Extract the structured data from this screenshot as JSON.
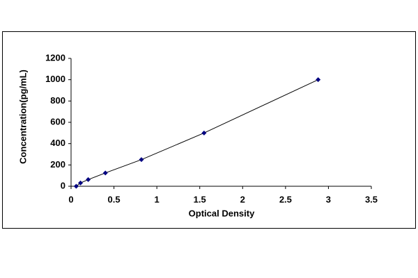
{
  "chart_data": {
    "type": "scatter-line",
    "xlabel": "Optical Density",
    "ylabel": "Concentration(pg/mL)",
    "x": [
      0.06,
      0.11,
      0.2,
      0.4,
      0.82,
      1.55,
      2.88
    ],
    "y": [
      0,
      31.25,
      62.5,
      125,
      250,
      500,
      1000
    ],
    "marker_color": "#000080",
    "line_color": "#000000",
    "xlim": [
      0,
      3.5
    ],
    "xticks": [
      0,
      0.5,
      1,
      1.5,
      2,
      2.5,
      3,
      3.5
    ],
    "ylim": [
      0,
      1200
    ],
    "yticks": [
      0,
      200,
      400,
      600,
      800,
      1000,
      1200
    ],
    "grid": false
  }
}
